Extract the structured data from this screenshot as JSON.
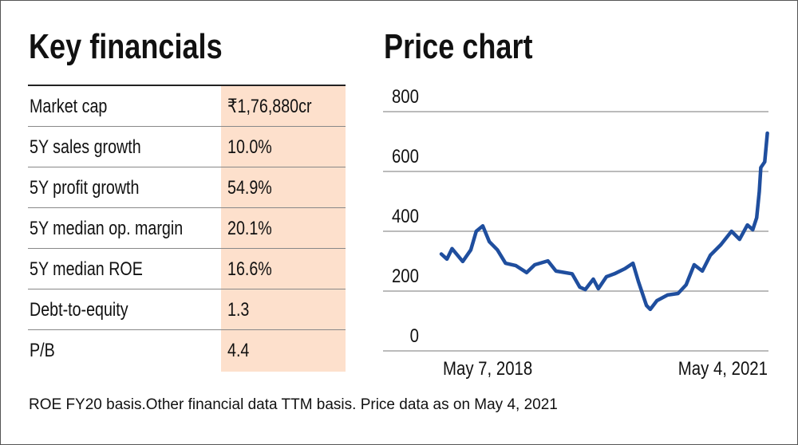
{
  "left_panel": {
    "title": "Key financials",
    "rows": [
      {
        "label": "Market cap",
        "value": "₹1,76,880cr"
      },
      {
        "label": "5Y sales growth",
        "value": "10.0%"
      },
      {
        "label": "5Y profit growth",
        "value": "54.9%"
      },
      {
        "label": "5Y median op. margin",
        "value": "20.1%"
      },
      {
        "label": "5Y median ROE",
        "value": "16.6%"
      },
      {
        "label": "Debt-to-equity",
        "value": "1.3"
      },
      {
        "label": "P/B",
        "value": "4.4"
      }
    ]
  },
  "footer": "ROE FY20 basis.Other financial data TTM basis. Price data as on May 4, 2021",
  "colors": {
    "line": "#1f4e9e",
    "highlight": "#fde0cc",
    "grid": "#bbbbbb"
  },
  "chart_data": {
    "type": "line",
    "title": "Price chart",
    "xlabel": "",
    "ylabel": "",
    "ylim": [
      0,
      800
    ],
    "yticks": [
      "800",
      "600",
      "400",
      "200",
      "0"
    ],
    "ytick_values": [
      800,
      600,
      400,
      200,
      0
    ],
    "xticks": [
      "May 7, 2018",
      "May 4, 2021"
    ],
    "x_unit": "days since May 7, 2018",
    "xlim": [
      0,
      1093
    ],
    "grid": true,
    "series": [
      {
        "name": "Price",
        "x": [
          0,
          19,
          36,
          72,
          99,
          117,
          139,
          161,
          188,
          215,
          250,
          286,
          313,
          357,
          384,
          438,
          464,
          482,
          509,
          526,
          553,
          580,
          615,
          642,
          660,
          687,
          700,
          722,
          758,
          793,
          820,
          847,
          874,
          901,
          936,
          972,
          999,
          1025,
          1043,
          1056,
          1065,
          1070,
          1083,
          1092
        ],
        "y": [
          324,
          307,
          342,
          299,
          338,
          400,
          418,
          365,
          338,
          293,
          285,
          262,
          288,
          301,
          267,
          258,
          213,
          205,
          240,
          208,
          248,
          258,
          275,
          293,
          232,
          152,
          139,
          168,
          187,
          192,
          221,
          288,
          267,
          320,
          355,
          400,
          373,
          421,
          405,
          445,
          533,
          613,
          632,
          728
        ]
      }
    ]
  }
}
